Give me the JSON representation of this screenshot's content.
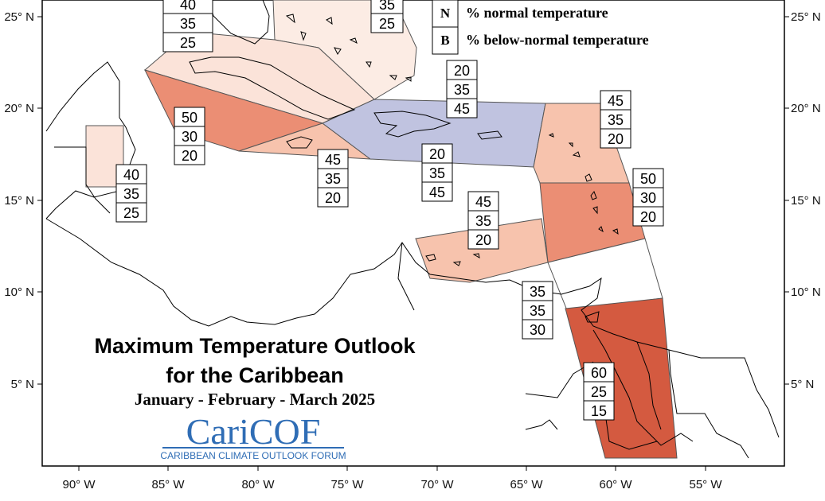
{
  "map": {
    "title_line1": "Maximum Temperature Outlook",
    "title_line2": "for the Caribbean",
    "period": "January - February - March 2025",
    "logo_text": "CariCOF",
    "logo_subtitle": "CARIBBEAN CLIMATE OUTLOOK FORUM",
    "lat_labels": [
      "25° N",
      "20° N",
      "15° N",
      "10° N",
      "5° N"
    ],
    "lon_labels": [
      "90° W",
      "85° W",
      "80° W",
      "75° W",
      "70° W",
      "65° W",
      "60° W",
      "55° W"
    ],
    "legend": [
      {
        "code": "N",
        "label": "% normal temperature"
      },
      {
        "code": "B",
        "label": "% below-normal temperature"
      }
    ],
    "probability_boxes": [
      {
        "region": "gulf-florida",
        "above": "40",
        "normal": "35",
        "below": "25"
      },
      {
        "region": "bahamas",
        "above": "35",
        "normal": "25",
        "below": ""
      },
      {
        "region": "cuba",
        "above": "50",
        "normal": "30",
        "below": "20"
      },
      {
        "region": "belize",
        "above": "40",
        "normal": "35",
        "below": "25"
      },
      {
        "region": "jamaica",
        "above": "45",
        "normal": "35",
        "below": "20"
      },
      {
        "region": "hispaniola-puerto-rico",
        "above": "20",
        "normal": "35",
        "below": "45"
      },
      {
        "region": "hispaniola-puerto-rico-north",
        "above": "20",
        "normal": "35",
        "below": "45"
      },
      {
        "region": "northern-leewards",
        "above": "45",
        "normal": "35",
        "below": "20"
      },
      {
        "region": "windwards",
        "above": "50",
        "normal": "30",
        "below": "20"
      },
      {
        "region": "abc-islands",
        "above": "45",
        "normal": "35",
        "below": "20"
      },
      {
        "region": "trinidad-tobago",
        "above": "35",
        "normal": "35",
        "below": "30"
      },
      {
        "region": "guianas",
        "above": "60",
        "normal": "25",
        "below": "15"
      }
    ],
    "colors": {
      "above_60": "#d45a40",
      "above_50": "#eb8e74",
      "above_45": "#f7c3ad",
      "above_40": "#fbe3d9",
      "above_35": "#fcece4",
      "below_45": "#c0c3e0",
      "normal": "#ffffff",
      "logo": "#2f6db5"
    }
  }
}
